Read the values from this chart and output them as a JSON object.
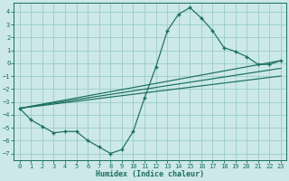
{
  "xlabel": "Humidex (Indice chaleur)",
  "xlim": [
    -0.5,
    23.5
  ],
  "ylim": [
    -7.5,
    4.7
  ],
  "xticks": [
    0,
    1,
    2,
    3,
    4,
    5,
    6,
    7,
    8,
    9,
    10,
    11,
    12,
    13,
    14,
    15,
    16,
    17,
    18,
    19,
    20,
    21,
    22,
    23
  ],
  "yticks": [
    -7,
    -6,
    -5,
    -4,
    -3,
    -2,
    -1,
    0,
    1,
    2,
    3,
    4
  ],
  "background_color": "#cce8e8",
  "grid_color": "#99cccc",
  "line_color": "#1a6e60",
  "main_x": [
    0,
    1,
    2,
    3,
    4,
    5,
    6,
    7,
    8,
    9,
    10,
    11,
    12,
    13,
    14,
    15,
    16,
    17,
    18,
    19,
    20,
    21,
    22,
    23
  ],
  "main_y": [
    -3.5,
    -4.4,
    -4.9,
    -5.4,
    -5.3,
    -5.3,
    -6.0,
    -6.5,
    -7.0,
    -6.7,
    -5.3,
    -2.7,
    -0.3,
    2.5,
    3.8,
    4.3,
    3.5,
    2.5,
    1.2,
    0.9,
    0.5,
    -0.1,
    -0.1,
    0.2
  ],
  "trend1_x": [
    0,
    23
  ],
  "trend1_y": [
    -3.5,
    0.2
  ],
  "trend2_x": [
    0,
    23
  ],
  "trend2_y": [
    -3.5,
    -0.4
  ],
  "trend3_x": [
    0,
    23
  ],
  "trend3_y": [
    -3.5,
    -1.0
  ]
}
